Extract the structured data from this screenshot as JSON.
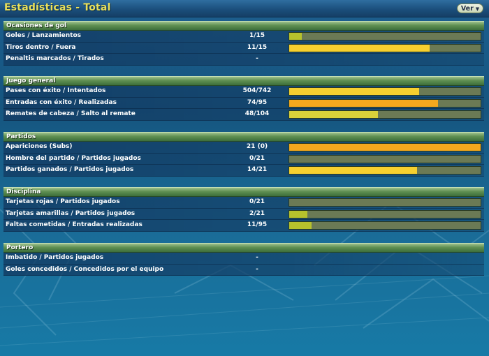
{
  "title": "Estadísticas - Total",
  "ver_button": "Ver",
  "colors": {
    "yellow": "#f6d02f",
    "orange": "#f3a81e",
    "olive": "#b7c22c",
    "bar_bg": "#6b7a55"
  },
  "sections": [
    {
      "title": "Ocasiones de gol",
      "rows": [
        {
          "label": "Goles / Lanzamientos",
          "value": "1/15",
          "fill": 0.067,
          "color": "#b7c22c"
        },
        {
          "label": "Tiros dentro / Fuera",
          "value": "11/15",
          "fill": 0.733,
          "color": "#f6d02f"
        },
        {
          "label": "Penaltis marcados / Tirados",
          "value": "-"
        }
      ]
    },
    {
      "title": "Juego general",
      "rows": [
        {
          "label": "Pases con éxito / Intentados",
          "value": "504/742",
          "fill": 0.679,
          "color": "#f6d02f"
        },
        {
          "label": "Entradas con éxito / Realizadas",
          "value": "74/95",
          "fill": 0.779,
          "color": "#f3a81e"
        },
        {
          "label": "Remates de cabeza / Salto al remate",
          "value": "48/104",
          "fill": 0.462,
          "color": "#d9d23a"
        }
      ]
    },
    {
      "title": "Partidos",
      "rows": [
        {
          "label": "Apariciones (Subs)",
          "value": "21 (0)",
          "fill": 1.0,
          "color": "#f3a81e"
        },
        {
          "label": "Hombre del partido / Partidos jugados",
          "value": "0/21",
          "fill": 0.0,
          "color": "#f6d02f"
        },
        {
          "label": "Partidos ganados / Partidos jugados",
          "value": "14/21",
          "fill": 0.667,
          "color": "#f6d02f"
        }
      ]
    },
    {
      "title": "Disciplina",
      "rows": [
        {
          "label": "Tarjetas rojas / Partidos jugados",
          "value": "0/21",
          "fill": 0.0,
          "color": "#f6d02f"
        },
        {
          "label": "Tarjetas amarillas / Partidos jugados",
          "value": "2/21",
          "fill": 0.095,
          "color": "#b7c22c"
        },
        {
          "label": "Faltas cometidas / Entradas realizadas",
          "value": "11/95",
          "fill": 0.116,
          "color": "#b7c22c"
        }
      ]
    },
    {
      "title": "Portero",
      "rows": [
        {
          "label": "Imbatido / Partidos jugados",
          "value": "-"
        },
        {
          "label": "Goles concedidos / Concedidos por el equipo",
          "value": "-"
        }
      ]
    }
  ]
}
